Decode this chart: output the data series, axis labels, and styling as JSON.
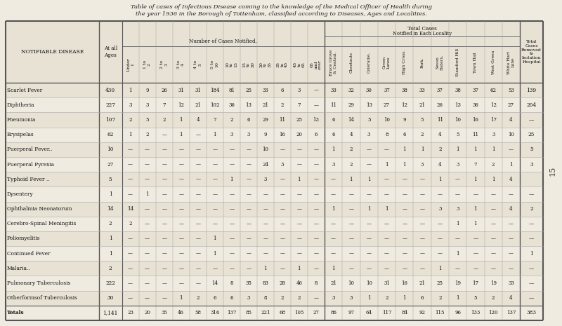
{
  "title_line1": "Table of cases of Infectious Disease coming to the knowledge of the Medical Officer of Health during",
  "title_line2": "the year 1936 in the Borough of Tottenham, classified according to Diseases, Ages and Localities.",
  "bg_color": "#f0ebe0",
  "table_bg": "#f0ebe0",
  "header_bg": "#e8e2d4",
  "alt_row_bg": "#e8e2d4",
  "line_color": "#555555",
  "col_headers_age": [
    "Under\n1",
    "1 to\n2",
    "2 to\n3",
    "3 to\n4",
    "4 to\n5",
    "5 to\n10",
    "10\nto\n15",
    "15\nto\n20",
    "20\nto\n35",
    "35\nto\n45",
    "45\nto\n65",
    "65\nand\nover"
  ],
  "col_headers_loc": [
    "Bruce Grove\n& Central.",
    "Chestnuts",
    "Coleraine.",
    "Green\nLanes",
    "High Cross.",
    "Park.",
    "Seven\nSisters.",
    "Stamford Hill",
    "Town Hall",
    "West Green",
    "White Hart\nLane"
  ],
  "data": [
    [
      "Scarlet Fever",
      430,
      1,
      9,
      26,
      31,
      31,
      184,
      81,
      25,
      33,
      6,
      3,
      "—",
      33,
      32,
      30,
      37,
      38,
      33,
      37,
      38,
      37,
      62,
      53,
      139
    ],
    [
      "Diphtheria",
      227,
      3,
      3,
      7,
      12,
      21,
      102,
      36,
      13,
      21,
      2,
      7,
      "—",
      11,
      29,
      13,
      27,
      12,
      21,
      26,
      13,
      36,
      12,
      27,
      204
    ],
    [
      "Pneumonia",
      107,
      2,
      5,
      2,
      1,
      4,
      7,
      2,
      6,
      29,
      11,
      25,
      13,
      6,
      14,
      5,
      10,
      9,
      5,
      11,
      10,
      16,
      17,
      4,
      "—"
    ],
    [
      "Erysipelas",
      62,
      1,
      2,
      "—",
      1,
      "—",
      1,
      3,
      3,
      9,
      16,
      20,
      6,
      6,
      4,
      3,
      8,
      6,
      2,
      4,
      5,
      11,
      3,
      10,
      25
    ],
    [
      "Puerperal Fever..",
      10,
      "—",
      "—",
      "—",
      "—",
      "—",
      "—",
      "—",
      "—",
      10,
      "—",
      "—",
      "—",
      1,
      2,
      "—",
      "—",
      1,
      1,
      2,
      1,
      1,
      1,
      "—",
      5
    ],
    [
      "Puerperal Pyrexia",
      27,
      "—",
      "—",
      "—",
      "—",
      "—",
      "—",
      "—",
      "—",
      24,
      3,
      "—",
      "—",
      3,
      2,
      "—",
      1,
      1,
      3,
      4,
      3,
      7,
      2,
      1,
      3
    ],
    [
      "Typhoid Fever ..",
      5,
      "—",
      "—",
      "—",
      "—",
      "—",
      "—",
      1,
      "—",
      3,
      "—",
      1,
      "—",
      "—",
      1,
      1,
      "—",
      "—",
      "—",
      1,
      "—",
      1,
      1,
      4,
      ""
    ],
    [
      "Dysentery",
      1,
      "—",
      1,
      "—",
      "—",
      "—",
      "—",
      "—",
      "—",
      "—",
      "—",
      "—",
      "—",
      "—",
      "—",
      "—",
      "—",
      "—",
      "—",
      "—",
      "—",
      "—",
      "—",
      "—",
      "—"
    ],
    [
      "Ophthalmia Neonatorum",
      14,
      14,
      "—",
      "—",
      "—",
      "—",
      "—",
      "—",
      "—",
      "—",
      "—",
      "—",
      "—",
      1,
      "—",
      1,
      1,
      "—",
      "—",
      3,
      3,
      1,
      "—",
      4,
      2
    ],
    [
      "Cerebro-Spinal Meningitis",
      2,
      2,
      "—",
      "—",
      "—",
      "—",
      "—",
      "—",
      "—",
      "—",
      "—",
      "—",
      "—",
      "—",
      "—",
      "—",
      "—",
      "—",
      "—",
      "—",
      1,
      1,
      "—",
      "—",
      "—"
    ],
    [
      "Poliomyelitis",
      1,
      "—",
      "—",
      "—",
      "—",
      "—",
      1,
      "—",
      "—",
      "—",
      "—",
      "—",
      "—",
      "—",
      "—",
      "—",
      "—",
      "—",
      "—",
      "—",
      "—",
      "—",
      "—",
      "—",
      "—"
    ],
    [
      "Continued Fever",
      1,
      "—",
      "—",
      "—",
      "—",
      "—",
      1,
      "—",
      "—",
      "—",
      "—",
      "—",
      "—",
      "—",
      "—",
      "—",
      "—",
      "—",
      "—",
      "—",
      1,
      "—",
      "—",
      "—",
      1
    ],
    [
      "Malaria..",
      2,
      "—",
      "—",
      "—",
      "—",
      "—",
      "—",
      "—",
      "—",
      1,
      "—",
      1,
      "—",
      1,
      "—",
      "—",
      "—",
      "—",
      "—",
      1,
      "—",
      "—",
      "—",
      "—",
      "—"
    ],
    [
      "Pulmonary Tuberculosis",
      222,
      "—",
      "—",
      "—",
      "—",
      "—",
      14,
      8,
      35,
      83,
      28,
      46,
      8,
      21,
      10,
      10,
      31,
      16,
      21,
      25,
      19,
      17,
      19,
      33,
      "—"
    ],
    [
      "Otherformsof Tuberculosis",
      30,
      "—",
      "—",
      "—",
      1,
      2,
      6,
      6,
      3,
      8,
      2,
      2,
      "—",
      3,
      3,
      1,
      2,
      1,
      6,
      2,
      1,
      5,
      2,
      4,
      "—"
    ],
    [
      "Totals",
      1141,
      23,
      20,
      35,
      46,
      58,
      316,
      137,
      85,
      221,
      68,
      105,
      27,
      86,
      97,
      64,
      117,
      84,
      92,
      115,
      96,
      133,
      120,
      137,
      383
    ]
  ]
}
